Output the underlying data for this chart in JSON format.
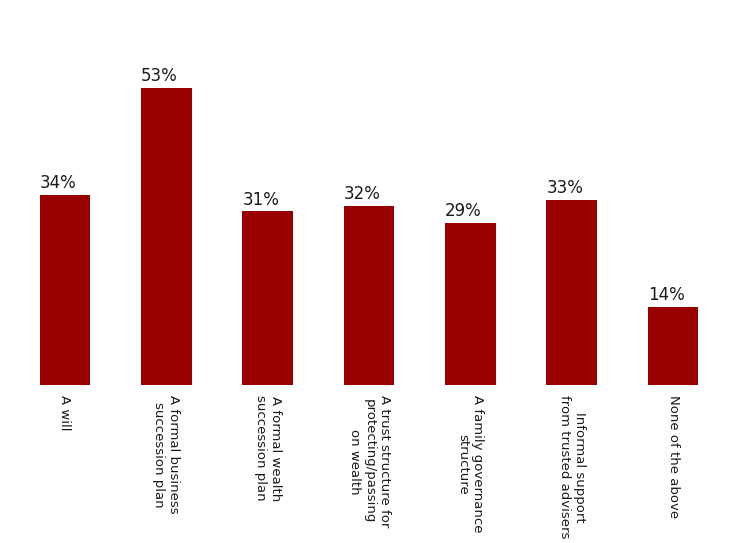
{
  "categories": [
    "A will",
    "A formal business\nsuccession plan",
    "A formal wealth\nsuccession plan",
    "A trust structure for\nprotecting/passing\non wealth",
    "A family governance\nstructure",
    "Informal support\nfrom trusted advisers",
    "None of the above"
  ],
  "values": [
    34,
    53,
    31,
    32,
    29,
    33,
    14
  ],
  "bar_color": "#9B0000",
  "label_color": "#1a1a1a",
  "background_color": "#ffffff",
  "value_labels": [
    "34%",
    "53%",
    "31%",
    "32%",
    "29%",
    "33%",
    "14%"
  ],
  "ylim": [
    0,
    68
  ],
  "bar_width": 0.5,
  "label_fontsize": 12,
  "tick_fontsize": 9.5,
  "figsize": [
    7.38,
    5.43
  ],
  "dpi": 100
}
